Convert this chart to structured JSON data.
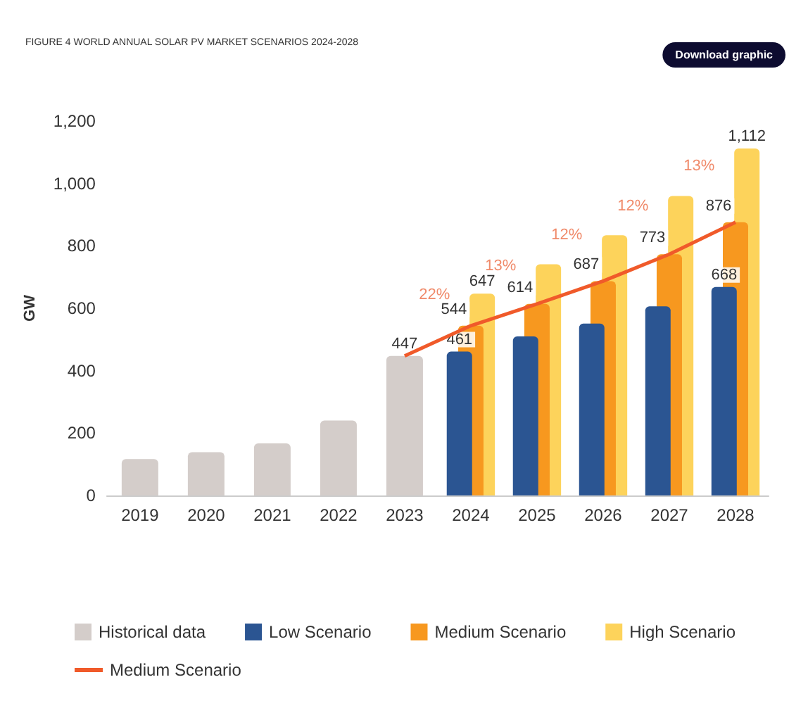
{
  "chart_data": {
    "type": "bar",
    "title": "FIGURE 4 WORLD ANNUAL SOLAR PV MARKET SCENARIOS 2024-2028",
    "ylabel": "GW",
    "categories": [
      "2019",
      "2020",
      "2021",
      "2022",
      "2023",
      "2024",
      "2025",
      "2026",
      "2027",
      "2028"
    ],
    "series": [
      {
        "name": "Historical data",
        "color": "#d4cdca",
        "values": [
          117,
          139,
          167,
          240,
          447,
          null,
          null,
          null,
          null,
          null
        ],
        "value_labels": [
          null,
          null,
          null,
          null,
          "447",
          null,
          null,
          null,
          null,
          null
        ]
      },
      {
        "name": "Low Scenario",
        "color": "#2b5592",
        "values": [
          null,
          null,
          null,
          null,
          null,
          461,
          510,
          551,
          606,
          668
        ],
        "value_labels": [
          null,
          null,
          null,
          null,
          null,
          "461",
          null,
          null,
          null,
          "668"
        ]
      },
      {
        "name": "Medium Scenario",
        "color": "#f7981f",
        "values": [
          null,
          null,
          null,
          null,
          null,
          544,
          614,
          687,
          773,
          876
        ],
        "value_labels": [
          null,
          null,
          null,
          null,
          null,
          "544",
          "614",
          "687",
          "773",
          "876"
        ]
      },
      {
        "name": "High Scenario",
        "color": "#fdd35b",
        "values": [
          null,
          null,
          null,
          null,
          null,
          647,
          741,
          834,
          960,
          1112
        ],
        "value_labels": [
          null,
          null,
          null,
          null,
          null,
          "647",
          null,
          null,
          null,
          "1,112"
        ]
      },
      {
        "name": "Medium Scenario",
        "type": "line",
        "color": "#f05a2a",
        "values": [
          null,
          null,
          null,
          null,
          447,
          544,
          614,
          687,
          773,
          876
        ]
      }
    ],
    "ylim": [
      0,
      1200
    ],
    "yticks": [
      0,
      200,
      400,
      600,
      800,
      {
        "value": 1000,
        "label": "1,000"
      },
      {
        "value": 1200,
        "label": "1,200"
      }
    ],
    "grid": false,
    "legend": "bottom",
    "marker": "none",
    "annotations": [
      "Download graphic",
      {
        "text": "22%",
        "x": "2024",
        "y": 643
      },
      {
        "text": "13%",
        "x": "2025",
        "y": 736
      },
      {
        "text": "12%",
        "x": "2026",
        "y": 834
      },
      {
        "text": "12%",
        "x": "2027",
        "y": 928
      },
      {
        "text": "13%",
        "x": "2028",
        "y": 1055
      }
    ]
  }
}
